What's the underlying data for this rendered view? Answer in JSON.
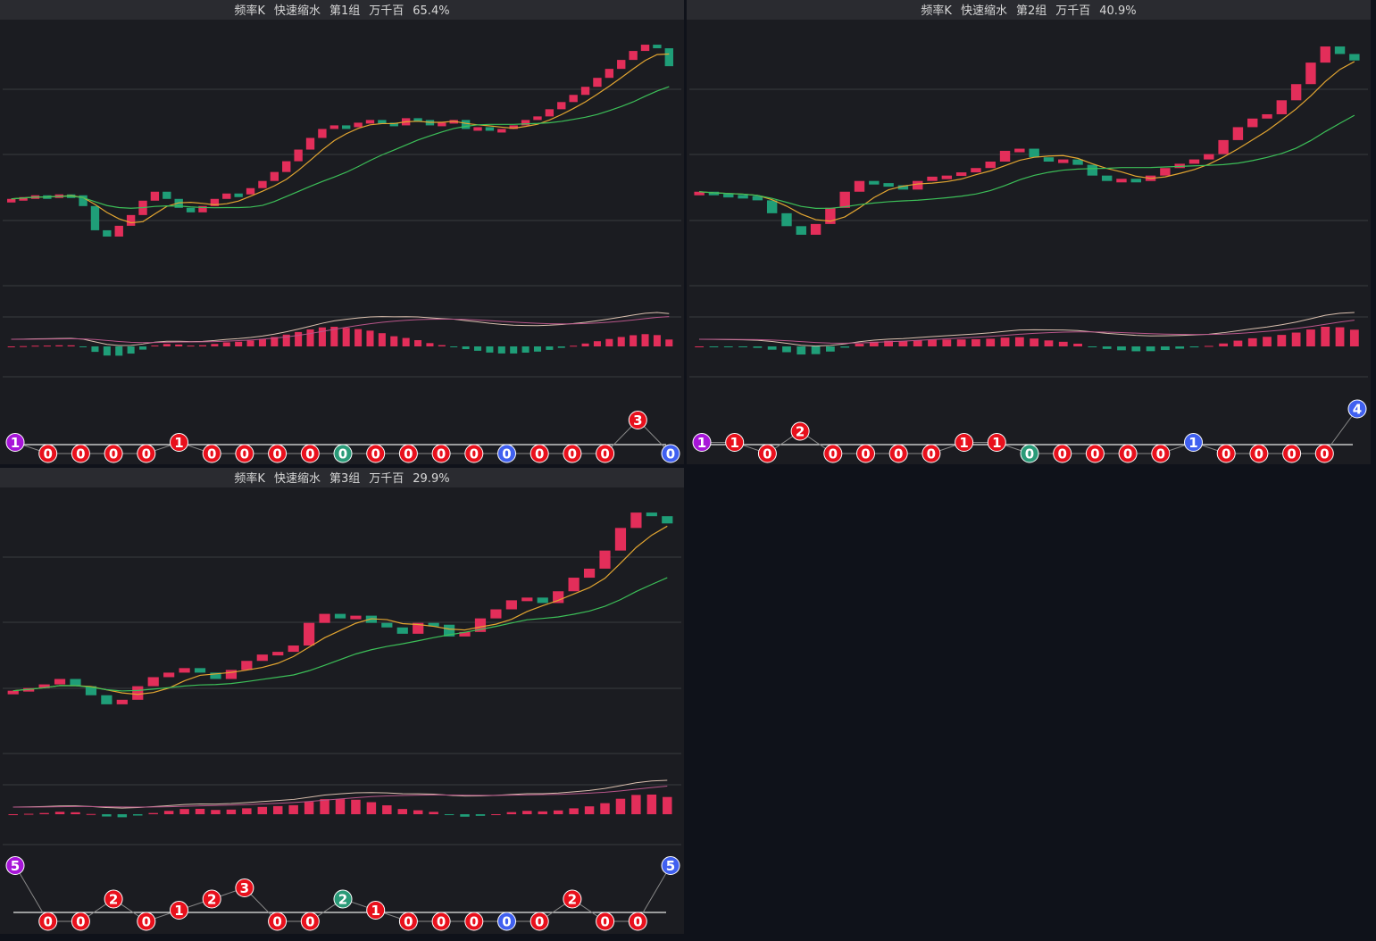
{
  "panels": [
    {
      "title": [
        "频率K",
        "快速缩水",
        "第1组",
        "万千百",
        "65.4%"
      ],
      "close": [
        80,
        82,
        84,
        83,
        85,
        84,
        72,
        45,
        38,
        50,
        62,
        78,
        88,
        80,
        70,
        65,
        72,
        80,
        86,
        85,
        92,
        100,
        110,
        122,
        135,
        148,
        158,
        162,
        160,
        165,
        168,
        165,
        162,
        170,
        168,
        162,
        165,
        168,
        158,
        160,
        156,
        158,
        162,
        168,
        172,
        180,
        188,
        196,
        205,
        215,
        225,
        235,
        245,
        252,
        248,
        228
      ],
      "badges": [
        1,
        0,
        0,
        0,
        0,
        1,
        0,
        0,
        0,
        0,
        0,
        0,
        0,
        0,
        0,
        0,
        0,
        0,
        0,
        3,
        0
      ],
      "badge_colors": [
        "#a716d8",
        "#e8101c",
        "#e8101c",
        "#e8101c",
        "#e8101c",
        "#e8101c",
        "#e8101c",
        "#e8101c",
        "#e8101c",
        "#e8101c",
        "#2a9a78",
        "#e8101c",
        "#e8101c",
        "#e8101c",
        "#e8101c",
        "#4060f0",
        "#e8101c",
        "#e8101c",
        "#e8101c",
        "#e8101c",
        "#4060f0"
      ]
    },
    {
      "title": [
        "频率K",
        "快速缩水",
        "第2组",
        "万千百",
        "40.9%"
      ],
      "close": [
        90,
        88,
        87,
        86,
        82,
        70,
        58,
        50,
        60,
        75,
        90,
        100,
        98,
        96,
        92,
        100,
        104,
        105,
        108,
        112,
        118,
        128,
        130,
        122,
        118,
        120,
        115,
        105,
        100,
        102,
        100,
        105,
        112,
        116,
        120,
        125,
        138,
        150,
        158,
        162,
        175,
        190,
        210,
        225,
        218,
        212
      ],
      "badges": [
        1,
        1,
        0,
        2,
        0,
        0,
        0,
        0,
        1,
        1,
        0,
        0,
        0,
        0,
        0,
        1,
        0,
        0,
        0,
        0,
        4
      ],
      "badge_colors": [
        "#a716d8",
        "#e8101c",
        "#e8101c",
        "#e8101c",
        "#e8101c",
        "#e8101c",
        "#e8101c",
        "#e8101c",
        "#e8101c",
        "#e8101c",
        "#2a9a78",
        "#e8101c",
        "#e8101c",
        "#e8101c",
        "#e8101c",
        "#4060f0",
        "#e8101c",
        "#e8101c",
        "#e8101c",
        "#e8101c",
        "#4060f0"
      ]
    },
    {
      "title": [
        "频率K",
        "快速缩水",
        "第3组",
        "万千百",
        "29.9%"
      ],
      "close": [
        65,
        68,
        72,
        78,
        70,
        60,
        50,
        55,
        70,
        80,
        85,
        90,
        85,
        78,
        88,
        98,
        105,
        108,
        115,
        140,
        150,
        145,
        148,
        140,
        135,
        128,
        140,
        138,
        125,
        130,
        145,
        155,
        165,
        168,
        162,
        175,
        190,
        200,
        220,
        245,
        262,
        258,
        250
      ],
      "badges": [
        5,
        0,
        0,
        2,
        0,
        1,
        2,
        3,
        0,
        0,
        2,
        1,
        0,
        0,
        0,
        0,
        0,
        2,
        0,
        0,
        5
      ],
      "badge_colors": [
        "#a716d8",
        "#e8101c",
        "#e8101c",
        "#e8101c",
        "#e8101c",
        "#e8101c",
        "#e8101c",
        "#e8101c",
        "#e8101c",
        "#e8101c",
        "#2a9a78",
        "#e8101c",
        "#e8101c",
        "#e8101c",
        "#e8101c",
        "#4060f0",
        "#e8101c",
        "#e8101c",
        "#e8101c",
        "#e8101c",
        "#4060f0"
      ]
    }
  ]
}
